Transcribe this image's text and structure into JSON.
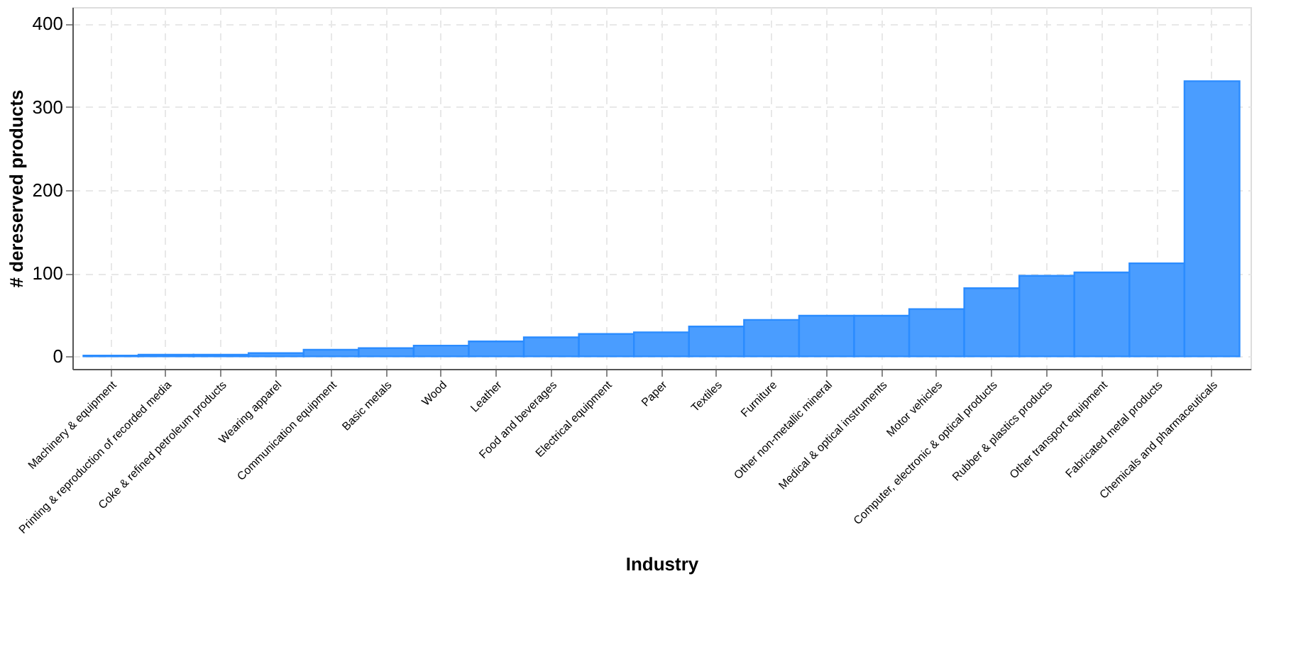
{
  "chart_data": {
    "type": "bar",
    "xlabel": "Industry",
    "ylabel": "# dereserved products",
    "categories": [
      "Machinery & equipment",
      "Printing & reproduction of recorded media",
      "Coke & refined petroleum products",
      "Wearing apparel",
      "Communication equipment",
      "Basic metals",
      "Wood",
      "Leather",
      "Food and beverages",
      "Electrical equipment",
      "Paper",
      "Textiles",
      "Furniture",
      "Other non-metallic mineral",
      "Medical & optical instruments",
      "Motor vehicles",
      "Computer, electronic & optical products",
      "Rubber & plastics products",
      "Other transport equipment",
      "Fabricated metal products",
      "Chemicals and pharmaceuticals"
    ],
    "values": [
      1,
      2,
      2,
      4,
      8,
      10,
      13,
      18,
      23,
      27,
      29,
      36,
      44,
      49,
      49,
      57,
      82,
      97,
      101,
      112,
      331
    ],
    "color": "#4a9dff",
    "ylim": [
      -15,
      420
    ],
    "yticks": [
      0,
      100,
      200,
      300,
      400
    ],
    "grid": true
  }
}
